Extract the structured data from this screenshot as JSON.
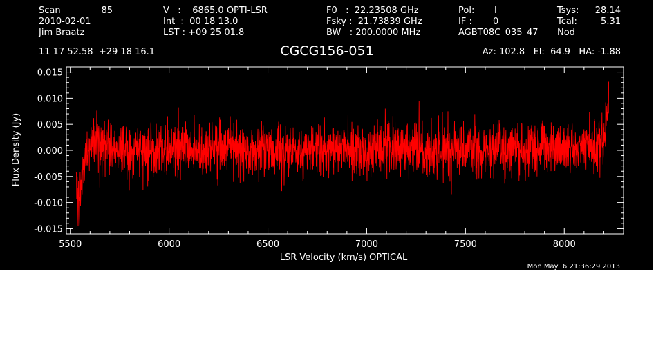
{
  "header": {
    "scan_label": "Scan",
    "scan_number": "85",
    "date": "2010-02-01",
    "observer": "Jim Braatz",
    "v_line": "V   :    6865.0 OPTI-LSR",
    "int_line": "Int  :  00 18 13.0",
    "lst_line": "LST : +09 25 01.8",
    "f0_line": "F0   :  22.23508 GHz",
    "fsky_line": "Fsky :  21.73839 GHz",
    "bw_line": "BW   : 200.0000 MHz",
    "pol_label": "Pol:",
    "pol_value": "I",
    "if_label": "IF :",
    "if_value": "0",
    "project": "AGBT08C_035_47",
    "tsys_label": "Tsys:",
    "tsys_value": "28.14",
    "tcal_label": "Tcal:",
    "tcal_value": "5.31",
    "mode": "Nod",
    "coords": "11 17 52.58  +29 18 16.1",
    "source": "CGCG156-051",
    "az_el_ha": "Az: 102.8   El:  64.9   HA: -1.88"
  },
  "timestamp": "Mon May  6 21:36:29 2013",
  "colors": {
    "background": "#000000",
    "axes": "#ffffff",
    "trace": "#ff0000",
    "page": "#ffffff"
  },
  "chart_data": {
    "type": "line",
    "title": "CGCG156-051",
    "xlabel": "LSR Velocity (km/s) OPTICAL",
    "ylabel": "Flux Density (Jy)",
    "xlim": [
      5480,
      8300
    ],
    "ylim": [
      -0.016,
      0.016
    ],
    "x_ticks": [
      5500,
      6000,
      6500,
      7000,
      7500,
      8000
    ],
    "x_tick_labels": [
      "5500",
      "6000",
      "6500",
      "7000",
      "7500",
      "8000"
    ],
    "y_ticks": [
      -0.015,
      -0.01,
      -0.005,
      0.0,
      0.005,
      0.01,
      0.015
    ],
    "y_tick_labels": [
      "-0.015",
      "-0.010",
      "-0.005",
      "0.000",
      "0.005",
      "0.010",
      "0.015"
    ],
    "grid": false,
    "legend": "none",
    "series": [
      {
        "x": [
          5530,
          5545,
          5560,
          5575,
          5590,
          5610,
          5640,
          5700,
          5800,
          5900,
          6000,
          6100,
          6200,
          6300,
          6400,
          6500,
          6600,
          6700,
          6800,
          6900,
          7000,
          7100,
          7200,
          7300,
          7400,
          7500,
          7600,
          7700,
          7800,
          7900,
          8000,
          8100,
          8150,
          8180,
          8200,
          8215,
          8225
        ],
        "y": [
          -0.006,
          -0.011,
          -0.006,
          -0.001,
          0.001,
          0.0015,
          0.0012,
          0.0005,
          0.0,
          0.0002,
          -0.0003,
          0.0003,
          0.0,
          0.0004,
          -0.0002,
          0.0003,
          0.0,
          0.0002,
          -0.0001,
          0.0003,
          0.0,
          0.0002,
          0.0004,
          0.0,
          0.0002,
          0.0001,
          -0.0003,
          0.0002,
          0.0003,
          0.0001,
          0.0002,
          0.0004,
          0.0005,
          0.001,
          0.002,
          0.006,
          0.008
        ],
        "noise_rms": 0.0024
      }
    ]
  }
}
